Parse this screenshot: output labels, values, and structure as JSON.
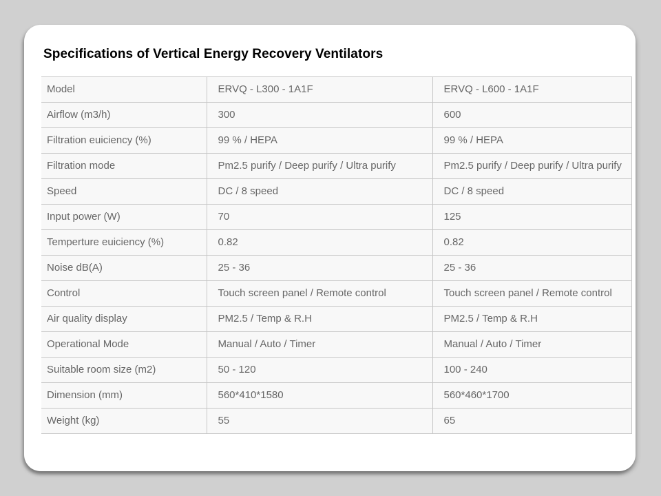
{
  "slide": {
    "title": "Specifications of Vertical Energy Recovery Ventilators"
  },
  "table": {
    "rows": [
      {
        "cells": [
          "Model",
          "ERVQ - L300 - 1A1F",
          "ERVQ - L600 - 1A1F"
        ]
      },
      {
        "cells": [
          "Airflow (m3/h)",
          "300",
          "600"
        ]
      },
      {
        "cells": [
          "Filtration euiciency (%)",
          "99 % / HEPA",
          "99 % / HEPA"
        ]
      },
      {
        "cells": [
          "Filtration mode",
          "Pm2.5 purify / Deep purify / Ultra purify",
          "Pm2.5 purify / Deep purify / Ultra purify"
        ]
      },
      {
        "cells": [
          "Speed",
          "DC / 8 speed",
          "DC / 8 speed"
        ]
      },
      {
        "cells": [
          "Input power (W)",
          "70",
          "125"
        ]
      },
      {
        "cells": [
          "Temperture euiciency (%)",
          "0.82",
          "0.82"
        ]
      },
      {
        "cells": [
          "Noise dB(A)",
          "25 - 36",
          "25 - 36"
        ]
      },
      {
        "cells": [
          "Control",
          "Touch screen panel / Remote control",
          "Touch screen panel / Remote control"
        ]
      },
      {
        "cells": [
          "Air quality display",
          "PM2.5 / Temp & R.H",
          "PM2.5 / Temp & R.H"
        ]
      },
      {
        "cells": [
          "Operational Mode",
          "Manual / Auto / Timer",
          "Manual / Auto / Timer"
        ]
      },
      {
        "cells": [
          "Suitable room size (m2)",
          "50 - 120",
          "100 - 240"
        ]
      },
      {
        "cells": [
          "Dimension (mm)",
          "560*410*1580",
          "560*460*1700"
        ]
      },
      {
        "cells": [
          "Weight (kg)",
          "55",
          "65"
        ]
      }
    ]
  },
  "colors": {
    "page_background": "#d0d0d0",
    "card_background": "#ffffff",
    "cell_background": "#f8f8f8",
    "table_border": "#c6c6c6",
    "cell_text": "#666666",
    "title_text": "#000000"
  }
}
